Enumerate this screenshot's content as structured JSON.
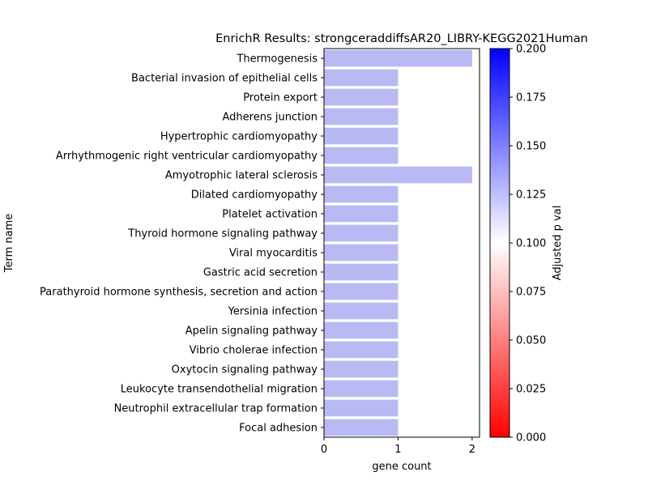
{
  "chart_data": {
    "type": "bar",
    "orientation": "horizontal",
    "title": "EnrichR Results: strongceraddiffsAR20_LIBRY-KEGG2021Human",
    "xlabel": "gene count",
    "ylabel": "Term name",
    "xlim": [
      0,
      2.1
    ],
    "xticks": [
      0,
      1,
      2
    ],
    "grid": false,
    "bar_color": "#b9b9f4",
    "categories": [
      "Thermogenesis",
      "Bacterial invasion of epithelial cells",
      "Protein export",
      "Adherens junction",
      "Hypertrophic cardiomyopathy",
      "Arrhythmogenic right ventricular cardiomyopathy",
      "Amyotrophic lateral sclerosis",
      "Dilated cardiomyopathy",
      "Platelet activation",
      "Thyroid hormone signaling pathway",
      "Viral myocarditis",
      "Gastric acid secretion",
      "Parathyroid hormone synthesis, secretion and action",
      "Yersinia infection",
      "Apelin signaling pathway",
      "Vibrio cholerae infection",
      "Oxytocin signaling pathway",
      "Leukocyte transendothelial migration",
      "Neutrophil extracellular trap formation",
      "Focal adhesion"
    ],
    "values": [
      2,
      1,
      1,
      1,
      1,
      1,
      2,
      1,
      1,
      1,
      1,
      1,
      1,
      1,
      1,
      1,
      1,
      1,
      1,
      1
    ],
    "colorbar": {
      "label": "Adjusted p val",
      "range": [
        0,
        0.2
      ],
      "ticks": [
        "0.000",
        "0.025",
        "0.050",
        "0.075",
        "0.100",
        "0.125",
        "0.150",
        "0.175",
        "0.200"
      ],
      "colors": [
        "#ff0000",
        "#ffffff",
        "#0000ff"
      ]
    }
  }
}
